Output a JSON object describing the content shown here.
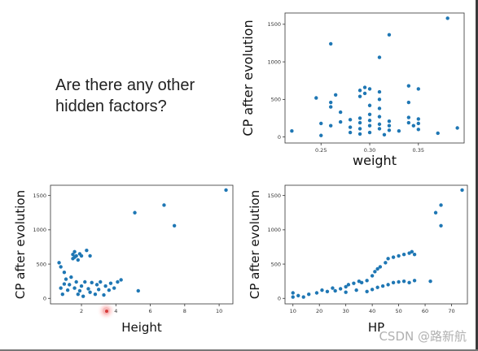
{
  "slide": {
    "question": "Are there any other\nhidden factors?",
    "watermark": "CSDN @路新航"
  },
  "colors": {
    "marker": "#1f77b4",
    "axis": "#333333"
  },
  "chart_data": [
    {
      "type": "scatter",
      "id": "weight",
      "title": "",
      "xlabel": "weight",
      "ylabel": "CP after evolution",
      "xlim": [
        0.213,
        0.397
      ],
      "ylim": [
        -80,
        1650
      ],
      "xticks": [
        0.25,
        0.3,
        0.35
      ],
      "xtick_labels": [
        "0.25",
        "0.30",
        "0.35"
      ],
      "yticks": [
        0,
        500,
        1000,
        1500
      ],
      "ytick_labels": [
        "0",
        "500",
        "1000",
        "1500"
      ],
      "grid": false,
      "points": [
        [
          0.22,
          80
        ],
        [
          0.245,
          520
        ],
        [
          0.25,
          20
        ],
        [
          0.25,
          180
        ],
        [
          0.26,
          1240
        ],
        [
          0.26,
          460
        ],
        [
          0.26,
          400
        ],
        [
          0.26,
          150
        ],
        [
          0.265,
          560
        ],
        [
          0.27,
          200
        ],
        [
          0.27,
          330
        ],
        [
          0.28,
          230
        ],
        [
          0.28,
          130
        ],
        [
          0.28,
          60
        ],
        [
          0.29,
          620
        ],
        [
          0.29,
          540
        ],
        [
          0.29,
          250
        ],
        [
          0.29,
          190
        ],
        [
          0.29,
          110
        ],
        [
          0.29,
          40
        ],
        [
          0.295,
          660
        ],
        [
          0.295,
          580
        ],
        [
          0.3,
          640
        ],
        [
          0.3,
          420
        ],
        [
          0.3,
          300
        ],
        [
          0.3,
          220
        ],
        [
          0.3,
          150
        ],
        [
          0.3,
          60
        ],
        [
          0.31,
          1060
        ],
        [
          0.31,
          600
        ],
        [
          0.31,
          500
        ],
        [
          0.31,
          380
        ],
        [
          0.31,
          270
        ],
        [
          0.31,
          170
        ],
        [
          0.31,
          110
        ],
        [
          0.315,
          30
        ],
        [
          0.32,
          1360
        ],
        [
          0.32,
          210
        ],
        [
          0.32,
          150
        ],
        [
          0.32,
          90
        ],
        [
          0.33,
          80
        ],
        [
          0.34,
          680
        ],
        [
          0.34,
          460
        ],
        [
          0.34,
          260
        ],
        [
          0.34,
          190
        ],
        [
          0.345,
          150
        ],
        [
          0.35,
          640
        ],
        [
          0.35,
          240
        ],
        [
          0.35,
          180
        ],
        [
          0.35,
          100
        ],
        [
          0.37,
          50
        ],
        [
          0.38,
          1580
        ],
        [
          0.39,
          120
        ]
      ]
    },
    {
      "type": "scatter",
      "id": "height",
      "title": "",
      "xlabel": "Height",
      "ylabel": "CP after evolution",
      "xlim": [
        0.2,
        10.8
      ],
      "ylim": [
        -80,
        1650
      ],
      "xticks": [
        2,
        4,
        6,
        8,
        10
      ],
      "xtick_labels": [
        "2",
        "4",
        "6",
        "8",
        "10"
      ],
      "yticks": [
        0,
        500,
        1000,
        1500
      ],
      "ytick_labels": [
        "0",
        "500",
        "1000",
        "1500"
      ],
      "grid": false,
      "points": [
        [
          0.7,
          520
        ],
        [
          0.8,
          460
        ],
        [
          0.8,
          150
        ],
        [
          0.9,
          60
        ],
        [
          1.0,
          210
        ],
        [
          1.0,
          380
        ],
        [
          1.1,
          280
        ],
        [
          1.2,
          120
        ],
        [
          1.3,
          200
        ],
        [
          1.4,
          310
        ],
        [
          1.5,
          640
        ],
        [
          1.5,
          580
        ],
        [
          1.6,
          680
        ],
        [
          1.6,
          600
        ],
        [
          1.6,
          150
        ],
        [
          1.7,
          620
        ],
        [
          1.7,
          240
        ],
        [
          1.8,
          560
        ],
        [
          1.8,
          60
        ],
        [
          1.9,
          650
        ],
        [
          1.9,
          110
        ],
        [
          2.0,
          620
        ],
        [
          2.0,
          180
        ],
        [
          2.1,
          30
        ],
        [
          2.2,
          240
        ],
        [
          2.3,
          700
        ],
        [
          2.4,
          140
        ],
        [
          2.5,
          620
        ],
        [
          2.5,
          90
        ],
        [
          2.6,
          230
        ],
        [
          2.8,
          60
        ],
        [
          2.9,
          200
        ],
        [
          3.0,
          130
        ],
        [
          3.1,
          240
        ],
        [
          3.3,
          50
        ],
        [
          3.4,
          180
        ],
        [
          3.6,
          120
        ],
        [
          3.7,
          220
        ],
        [
          3.9,
          150
        ],
        [
          4.1,
          240
        ],
        [
          4.3,
          270
        ],
        [
          5.1,
          1250
        ],
        [
          5.3,
          110
        ],
        [
          6.8,
          1360
        ],
        [
          7.4,
          1060
        ],
        [
          10.4,
          1580
        ]
      ]
    },
    {
      "type": "scatter",
      "id": "hp",
      "title": "",
      "xlabel": "HP",
      "ylabel": "CP after evolution",
      "xlim": [
        7,
        76
      ],
      "ylim": [
        -80,
        1650
      ],
      "xticks": [
        10,
        20,
        30,
        40,
        50,
        60,
        70
      ],
      "xtick_labels": [
        "10",
        "20",
        "30",
        "40",
        "50",
        "60",
        "70"
      ],
      "yticks": [
        0,
        500,
        1000,
        1500
      ],
      "ytick_labels": [
        "0",
        "500",
        "1000",
        "1500"
      ],
      "grid": false,
      "points": [
        [
          10,
          20
        ],
        [
          10,
          80
        ],
        [
          12,
          40
        ],
        [
          14,
          20
        ],
        [
          16,
          60
        ],
        [
          19,
          80
        ],
        [
          21,
          120
        ],
        [
          23,
          100
        ],
        [
          25,
          150
        ],
        [
          26,
          110
        ],
        [
          28,
          140
        ],
        [
          30,
          170
        ],
        [
          31,
          200
        ],
        [
          33,
          220
        ],
        [
          35,
          250
        ],
        [
          36,
          230
        ],
        [
          38,
          260
        ],
        [
          40,
          330
        ],
        [
          41,
          390
        ],
        [
          42,
          430
        ],
        [
          43,
          460
        ],
        [
          45,
          520
        ],
        [
          46,
          580
        ],
        [
          48,
          600
        ],
        [
          50,
          620
        ],
        [
          52,
          640
        ],
        [
          54,
          660
        ],
        [
          55,
          680
        ],
        [
          56,
          640
        ],
        [
          38,
          100
        ],
        [
          40,
          130
        ],
        [
          42,
          160
        ],
        [
          44,
          180
        ],
        [
          46,
          200
        ],
        [
          48,
          230
        ],
        [
          50,
          240
        ],
        [
          52,
          250
        ],
        [
          54,
          230
        ],
        [
          56,
          260
        ],
        [
          62,
          250
        ],
        [
          64,
          1250
        ],
        [
          66,
          1360
        ],
        [
          66,
          1060
        ],
        [
          74,
          1580
        ],
        [
          30,
          90
        ],
        [
          34,
          120
        ]
      ]
    }
  ]
}
